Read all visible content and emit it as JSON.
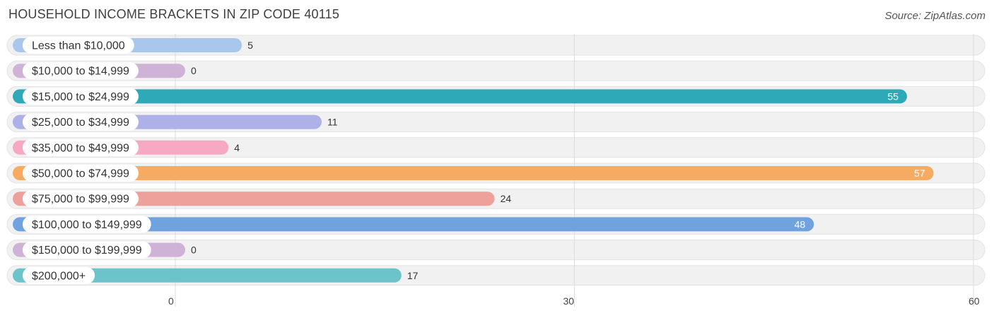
{
  "header": {
    "title": "HOUSEHOLD INCOME BRACKETS IN ZIP CODE 40115",
    "source": "Source: ZipAtlas.com"
  },
  "chart_data": {
    "type": "bar",
    "orientation": "horizontal",
    "title": "HOUSEHOLD INCOME BRACKETS IN ZIP CODE 40115",
    "categories": [
      "Less than $10,000",
      "$10,000 to $14,999",
      "$15,000 to $24,999",
      "$25,000 to $34,999",
      "$35,000 to $49,999",
      "$50,000 to $74,999",
      "$75,000 to $99,999",
      "$100,000 to $149,999",
      "$150,000 to $199,999",
      "$200,000+"
    ],
    "values": [
      5,
      0,
      55,
      11,
      4,
      57,
      24,
      48,
      0,
      17
    ],
    "colors": [
      "#a9c7ec",
      "#cfb3d6",
      "#2ea9b7",
      "#adb1e8",
      "#f7a8c3",
      "#f7ab62",
      "#eea19b",
      "#6fa2de",
      "#cfb3d6",
      "#6cc4ca"
    ],
    "xlim": [
      0,
      60
    ],
    "xticks": [
      0,
      30,
      60
    ],
    "xlabel": "",
    "ylabel": "",
    "grid": true
  }
}
